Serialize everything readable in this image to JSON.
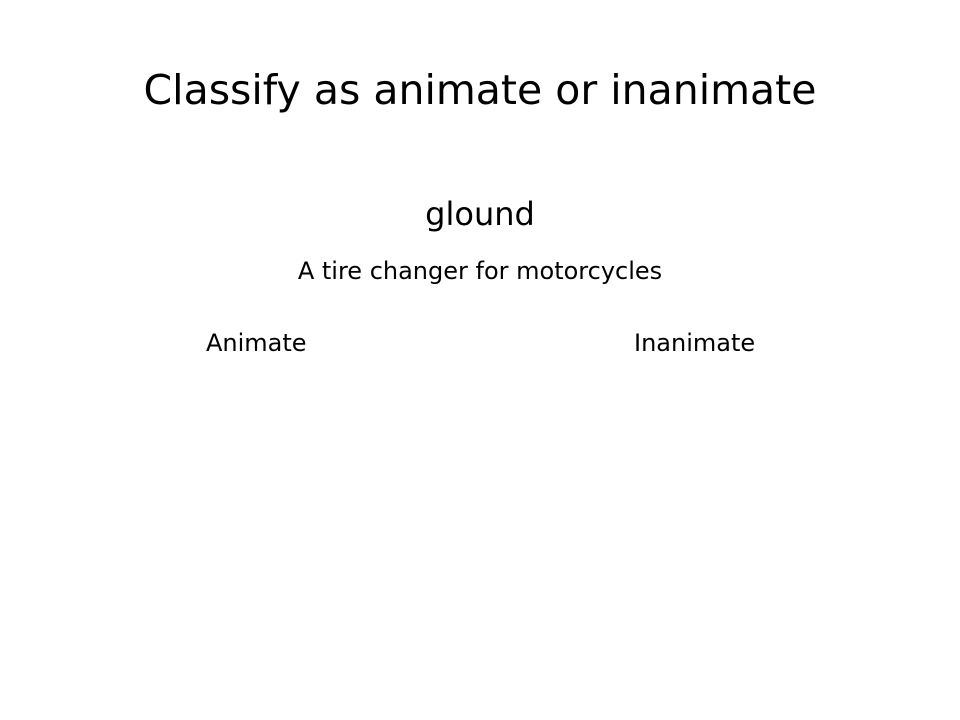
{
  "slide": {
    "title": "Classify as animate or inanimate",
    "word": "glound",
    "definition": "A tire changer for motorcycles",
    "options": [
      {
        "label": "Animate"
      },
      {
        "label": "Inanimate"
      }
    ]
  }
}
